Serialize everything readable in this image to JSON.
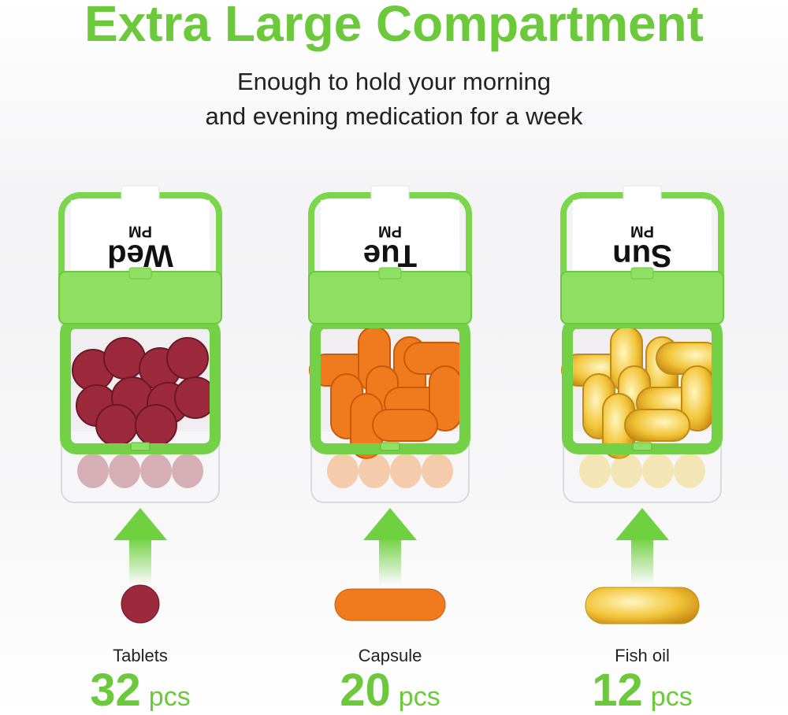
{
  "header": {
    "title": "Extra Large Compartment",
    "subtitle": [
      "Enough to hold your morning",
      "and evening medication for a week"
    ]
  },
  "items": [
    {
      "day": "Wed",
      "period": "PM",
      "name": "Tablets",
      "count": 32,
      "unit": "pcs"
    },
    {
      "day": "Tue",
      "period": "PM",
      "name": "Capsule",
      "count": 20,
      "unit": "pcs"
    },
    {
      "day": "Sun",
      "period": "PM",
      "name": "Fish oil",
      "count": 12,
      "unit": "pcs"
    }
  ]
}
